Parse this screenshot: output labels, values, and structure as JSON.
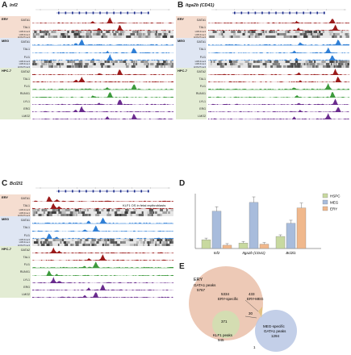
{
  "panels": {
    "A": {
      "letter": "A",
      "gene": "Inf2"
    },
    "B": {
      "letter": "B",
      "gene": "Itga2b (CD41)"
    },
    "C": {
      "letter": "C",
      "gene": "Bcl2l1",
      "annotation": "KLF1 OS in fetal erythroblasts"
    },
    "D": {
      "letter": "D"
    },
    "E": {
      "letter": "E"
    }
  },
  "groups": {
    "ery": "ERY",
    "meg": "MEG",
    "hpc7": "HPC-7"
  },
  "tracks": {
    "ery": [
      "GATA1",
      "TAL1"
    ],
    "meg": [
      "GATA1",
      "TAL1",
      "FLI1"
    ],
    "hpc7": [
      "GATA2",
      "TAL1",
      "FLI1",
      "RUNX1",
      "LYL1",
      "ERG",
      "LMO2"
    ]
  },
  "histone_labels": [
    "H3K4me3",
    "H3K4me1",
    "H3K27me3"
  ],
  "chart_data": {
    "type": "bar",
    "categories": [
      "Inf2",
      "Itga2b (CD41)",
      "Bcl2l1"
    ],
    "series": [
      {
        "name": "HSPC",
        "values": [
          0.8,
          0.5,
          1.1
        ],
        "color": "#c8d9a0"
      },
      {
        "name": "MEG",
        "values": [
          3.4,
          4.2,
          2.3
        ],
        "color": "#a8bcdc"
      },
      {
        "name": "ERY",
        "values": [
          0.3,
          0.4,
          3.7
        ],
        "color": "#f0b88c"
      }
    ],
    "ylim": [
      0,
      5
    ]
  },
  "venn": {
    "ery_title": "ERY",
    "ery_peaks_label": "GATA1 peaks",
    "ery_peaks_count": "5767",
    "ery_specific_count": "5334",
    "ery_specific_label": "ERY-specific",
    "ery_meg_count": "433",
    "ery_meg_label": "ERY-MEG",
    "center_count": "371",
    "small_count": "30",
    "klf1_label": "KLF1 peaks",
    "klf1_count": "945",
    "meg_specific_label": "MEG-specific",
    "meg_peaks_label": "GATA1 peaks",
    "meg_peaks_count": "1294",
    "bottom_count": "1"
  },
  "colors": {
    "ery_bg": "#f5ddd0",
    "meg_bg": "#dfe6f3",
    "hpc7_bg": "#e3ecd4",
    "red": "#9b1b1b",
    "blue": "#2f7fd6",
    "green": "#3d9b3d",
    "purple": "#6a2c8e"
  }
}
